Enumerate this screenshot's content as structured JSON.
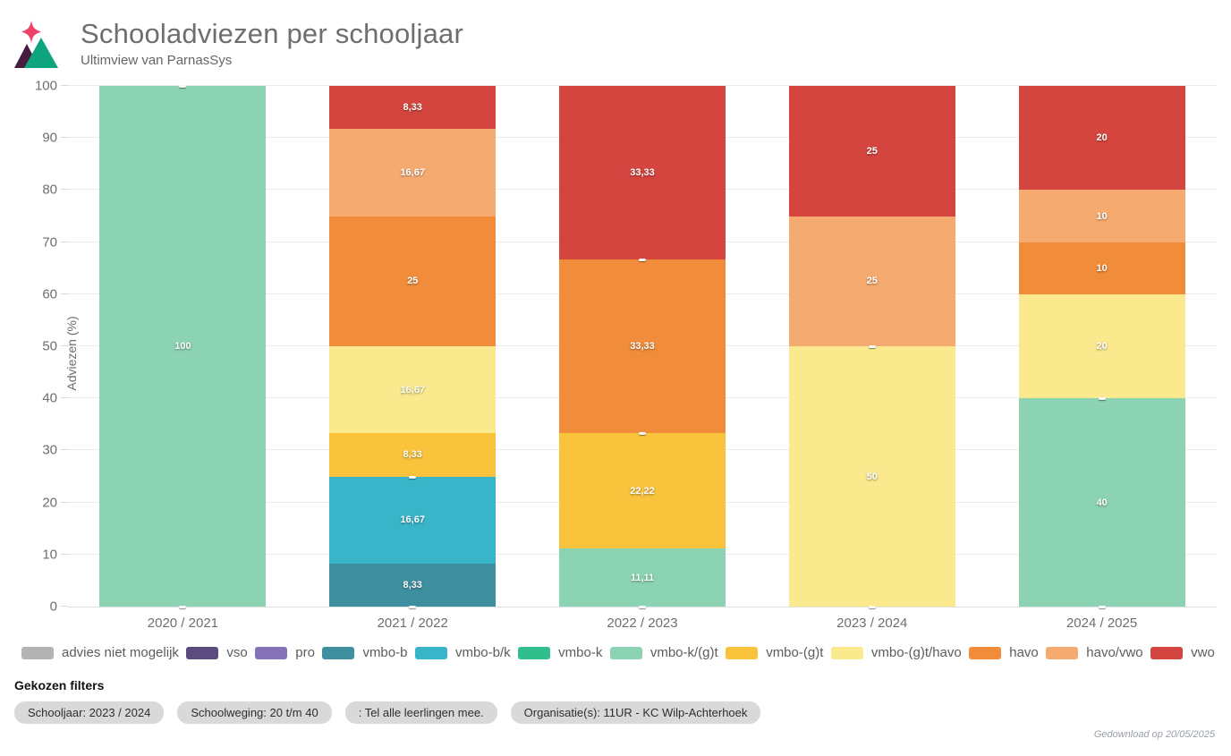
{
  "header": {
    "title": "Schooladviezen per schooljaar",
    "subtitle": "Ultimview van ParnasSys"
  },
  "logo_colors": {
    "sparkle": "#ee4266",
    "mountain_dark": "#461c40",
    "mountain_teal": "#0ea57e"
  },
  "chart_data": {
    "type": "bar",
    "stacked": true,
    "title": "Schooladviezen per schooljaar",
    "ylabel": "Adviezen (%)",
    "ylim": [
      0,
      100
    ],
    "yticks": [
      0,
      10,
      20,
      30,
      40,
      50,
      60,
      70,
      80,
      90,
      100
    ],
    "grid": true,
    "legend_position": "bottom",
    "categories": [
      "2020 / 2021",
      "2021 / 2022",
      "2022 / 2023",
      "2023 / 2024",
      "2024 / 2025"
    ],
    "series": [
      {
        "name": "advies niet mogelijk",
        "color": "#b3b3b3",
        "values": [
          0,
          0,
          0,
          0,
          0
        ],
        "labels": [
          "",
          "",
          "",
          "",
          ""
        ]
      },
      {
        "name": "vso",
        "color": "#5c4b7e",
        "values": [
          0,
          0,
          0,
          0,
          0
        ],
        "labels": [
          "",
          "",
          "",
          "",
          ""
        ]
      },
      {
        "name": "pro",
        "color": "#8573b9",
        "values": [
          0,
          0,
          0,
          0,
          0
        ],
        "labels": [
          "",
          "",
          "",
          "",
          ""
        ]
      },
      {
        "name": "vmbo-b",
        "color": "#3e8fa0",
        "values": [
          0,
          8.33,
          0,
          0,
          0
        ],
        "labels": [
          "",
          "8,33",
          "",
          "",
          ""
        ]
      },
      {
        "name": "vmbo-b/k",
        "color": "#38b5c8",
        "values": [
          0,
          16.67,
          0,
          0,
          0
        ],
        "labels": [
          "",
          "16,67",
          "",
          "",
          ""
        ]
      },
      {
        "name": "vmbo-k",
        "color": "#2fbe8c",
        "values": [
          0,
          0,
          0,
          0,
          0
        ],
        "labels": [
          "",
          "",
          "",
          "",
          ""
        ]
      },
      {
        "name": "vmbo-k/(g)t",
        "color": "#8bd3b3",
        "values": [
          100,
          0,
          11.11,
          0,
          40
        ],
        "labels": [
          "100",
          "",
          "11,11",
          "",
          "40"
        ]
      },
      {
        "name": "vmbo-(g)t",
        "color": "#f9c33c",
        "values": [
          0,
          8.33,
          22.22,
          0,
          0
        ],
        "labels": [
          "",
          "8,33",
          "22,22",
          "",
          ""
        ]
      },
      {
        "name": "vmbo-(g)t/havo",
        "color": "#fae98d",
        "values": [
          0,
          16.67,
          0,
          50,
          20
        ],
        "labels": [
          "",
          "16,67",
          "",
          "50",
          "20"
        ]
      },
      {
        "name": "havo",
        "color": "#f08c3a",
        "values": [
          0,
          25,
          33.33,
          0,
          10
        ],
        "labels": [
          "",
          "25",
          "33,33",
          "",
          "10"
        ]
      },
      {
        "name": "havo/vwo",
        "color": "#f5ab70",
        "values": [
          0,
          16.67,
          0,
          25,
          10
        ],
        "labels": [
          "",
          "16,67",
          "",
          "25",
          "10"
        ]
      },
      {
        "name": "vwo",
        "color": "#d5453f",
        "values": [
          0,
          8.33,
          33.33,
          25,
          20
        ],
        "labels": [
          "",
          "8,33",
          "33,33",
          "25",
          "20"
        ]
      }
    ]
  },
  "filters": {
    "heading": "Gekozen filters",
    "pills": [
      "Schooljaar: 2023 / 2024",
      "Schoolweging: 20 t/m 40",
      ": Tel alle leerlingen mee.",
      "Organisatie(s): 11UR - KC Wilp-Achterhoek"
    ]
  },
  "footer": {
    "downloaded": "Gedownload op 20/05/2025"
  }
}
